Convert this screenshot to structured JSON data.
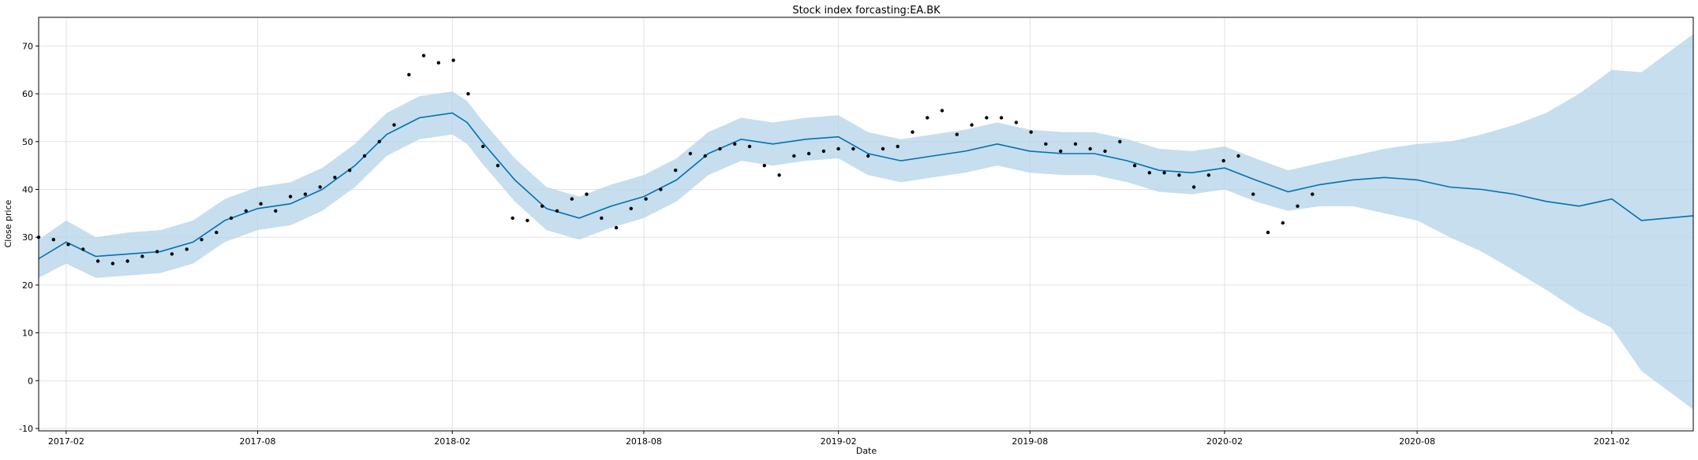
{
  "chart_data": {
    "type": "line",
    "title": "Stock index forcasting:EA.BK",
    "xlabel": "Date",
    "ylabel": "Close price",
    "x_ticks": [
      "2017-02",
      "2017-08",
      "2018-02",
      "2018-08",
      "2019-02",
      "2019-08",
      "2020-02",
      "2020-08",
      "2021-02"
    ],
    "y_ticks": [
      -10,
      0,
      10,
      20,
      30,
      40,
      50,
      60,
      70
    ],
    "xlim": [
      "2017-01-06",
      "2021-04-19"
    ],
    "ylim": [
      -10.5,
      76
    ],
    "grid": true,
    "colors": {
      "forecast_line": "#0072B2",
      "uncertainty_band": "#B3D3E8",
      "observed_points": "#000000",
      "grid": "#e2e2e2"
    },
    "series": [
      {
        "kind": "forecast",
        "x": [
          "2017-01-06",
          "2017-02-01",
          "2017-03-01",
          "2017-04-01",
          "2017-05-01",
          "2017-06-01",
          "2017-07-01",
          "2017-08-01",
          "2017-09-01",
          "2017-10-01",
          "2017-11-01",
          "2017-12-01",
          "2018-01-01",
          "2018-02-01",
          "2018-02-15",
          "2018-03-01",
          "2018-04-01",
          "2018-05-01",
          "2018-06-01",
          "2018-07-01",
          "2018-08-01",
          "2018-09-01",
          "2018-10-01",
          "2018-11-01",
          "2018-12-01",
          "2019-01-01",
          "2019-02-01",
          "2019-03-01",
          "2019-04-01",
          "2019-05-01",
          "2019-06-01",
          "2019-07-01",
          "2019-08-01",
          "2019-09-01",
          "2019-10-01",
          "2019-11-01",
          "2019-12-01",
          "2020-01-01",
          "2020-02-01",
          "2020-03-01",
          "2020-04-01",
          "2020-05-01",
          "2020-06-01",
          "2020-07-01",
          "2020-08-01",
          "2020-09-01",
          "2020-10-01",
          "2020-11-01",
          "2020-12-01",
          "2021-01-01",
          "2021-02-01",
          "2021-03-01",
          "2021-04-19"
        ],
        "y": [
          25.5,
          29.0,
          26.0,
          26.5,
          27.0,
          29.0,
          33.5,
          36.0,
          37.0,
          40.0,
          45.0,
          51.5,
          55.0,
          56.0,
          54.0,
          50.0,
          42.0,
          36.0,
          34.0,
          36.5,
          38.5,
          42.0,
          47.5,
          50.5,
          49.5,
          50.5,
          51.0,
          47.5,
          46.0,
          47.0,
          48.0,
          49.5,
          48.0,
          47.5,
          47.5,
          46.0,
          44.0,
          43.5,
          44.5,
          42.0,
          39.5,
          41.0,
          42.0,
          42.5,
          42.0,
          40.5,
          40.0,
          39.0,
          37.5,
          36.5,
          38.0,
          33.5,
          34.5
        ]
      },
      {
        "kind": "uncertainty_band",
        "x": [
          "2017-01-06",
          "2017-02-01",
          "2017-03-01",
          "2017-04-01",
          "2017-05-01",
          "2017-06-01",
          "2017-07-01",
          "2017-08-01",
          "2017-09-01",
          "2017-10-01",
          "2017-11-01",
          "2017-12-01",
          "2018-01-01",
          "2018-02-01",
          "2018-02-15",
          "2018-03-01",
          "2018-04-01",
          "2018-05-01",
          "2018-06-01",
          "2018-07-01",
          "2018-08-01",
          "2018-09-01",
          "2018-10-01",
          "2018-11-01",
          "2018-12-01",
          "2019-01-01",
          "2019-02-01",
          "2019-03-01",
          "2019-04-01",
          "2019-05-01",
          "2019-06-01",
          "2019-07-01",
          "2019-08-01",
          "2019-09-01",
          "2019-10-01",
          "2019-11-01",
          "2019-12-01",
          "2020-01-01",
          "2020-02-01",
          "2020-03-01",
          "2020-04-01",
          "2020-05-01",
          "2020-06-01",
          "2020-07-01",
          "2020-08-01",
          "2020-09-01",
          "2020-10-01",
          "2020-11-01",
          "2020-12-01",
          "2021-01-01",
          "2021-02-01",
          "2021-03-01",
          "2021-04-19"
        ],
        "lower": [
          21.5,
          24.5,
          21.5,
          22.0,
          22.5,
          24.5,
          29.0,
          31.5,
          32.5,
          35.5,
          40.5,
          47.0,
          50.5,
          51.5,
          49.5,
          45.5,
          37.5,
          31.5,
          29.5,
          32.0,
          34.0,
          37.5,
          43.0,
          46.0,
          45.0,
          46.0,
          46.5,
          43.0,
          41.5,
          42.5,
          43.5,
          45.0,
          43.5,
          43.0,
          43.0,
          41.5,
          39.5,
          39.0,
          40.0,
          37.5,
          35.5,
          36.5,
          36.5,
          35.0,
          33.5,
          30.0,
          27.0,
          23.0,
          19.0,
          14.5,
          11.0,
          2.0,
          -6.0
        ],
        "upper": [
          29.5,
          33.5,
          30.0,
          31.0,
          31.5,
          33.5,
          38.0,
          40.5,
          41.5,
          44.5,
          49.5,
          56.0,
          59.5,
          60.5,
          58.5,
          54.5,
          46.5,
          40.5,
          38.5,
          41.0,
          43.0,
          46.5,
          52.0,
          55.0,
          54.0,
          55.0,
          55.5,
          52.0,
          50.5,
          51.5,
          52.5,
          54.0,
          52.5,
          52.0,
          52.0,
          50.5,
          48.5,
          48.0,
          49.0,
          46.5,
          44.0,
          45.5,
          47.0,
          48.5,
          49.5,
          50.0,
          51.5,
          53.5,
          56.0,
          60.0,
          65.0,
          64.5,
          72.5
        ]
      },
      {
        "kind": "observed",
        "x": [
          "2017-01-06",
          "2017-01-20",
          "2017-02-03",
          "2017-02-17",
          "2017-03-03",
          "2017-03-17",
          "2017-03-31",
          "2017-04-14",
          "2017-04-28",
          "2017-05-12",
          "2017-05-26",
          "2017-06-09",
          "2017-06-23",
          "2017-07-07",
          "2017-07-21",
          "2017-08-04",
          "2017-08-18",
          "2017-09-01",
          "2017-09-15",
          "2017-09-29",
          "2017-10-13",
          "2017-10-27",
          "2017-11-10",
          "2017-11-24",
          "2017-12-08",
          "2017-12-22",
          "2018-01-05",
          "2018-01-19",
          "2018-02-02",
          "2018-02-16",
          "2018-03-02",
          "2018-03-16",
          "2018-03-30",
          "2018-04-13",
          "2018-04-27",
          "2018-05-11",
          "2018-05-25",
          "2018-06-08",
          "2018-06-22",
          "2018-07-06",
          "2018-07-20",
          "2018-08-03",
          "2018-08-17",
          "2018-08-31",
          "2018-09-14",
          "2018-09-28",
          "2018-10-12",
          "2018-10-26",
          "2018-11-09",
          "2018-11-23",
          "2018-12-07",
          "2018-12-21",
          "2019-01-04",
          "2019-01-18",
          "2019-02-01",
          "2019-02-15",
          "2019-03-01",
          "2019-03-15",
          "2019-03-29",
          "2019-04-12",
          "2019-04-26",
          "2019-05-10",
          "2019-05-24",
          "2019-06-07",
          "2019-06-21",
          "2019-07-05",
          "2019-07-19",
          "2019-08-02",
          "2019-08-16",
          "2019-08-30",
          "2019-09-13",
          "2019-09-27",
          "2019-10-11",
          "2019-10-25",
          "2019-11-08",
          "2019-11-22",
          "2019-12-06",
          "2019-12-20",
          "2020-01-03",
          "2020-01-17",
          "2020-01-31",
          "2020-02-14",
          "2020-02-28",
          "2020-03-13",
          "2020-03-27",
          "2020-04-10",
          "2020-04-24"
        ],
        "y": [
          30.0,
          29.5,
          28.5,
          27.5,
          25.0,
          24.5,
          25.0,
          26.0,
          27.0,
          26.5,
          27.5,
          29.5,
          31.0,
          34.0,
          35.5,
          37.0,
          35.5,
          38.5,
          39.0,
          40.5,
          42.5,
          44.0,
          47.0,
          50.0,
          53.5,
          64.0,
          68.0,
          66.5,
          67.0,
          60.0,
          49.0,
          45.0,
          34.0,
          33.5,
          36.5,
          35.5,
          38.0,
          39.0,
          34.0,
          32.0,
          36.0,
          38.0,
          40.0,
          44.0,
          47.5,
          47.0,
          48.5,
          49.5,
          49.0,
          45.0,
          43.0,
          47.0,
          47.5,
          48.0,
          48.5,
          48.5,
          47.0,
          48.5,
          49.0,
          52.0,
          55.0,
          56.5,
          51.5,
          53.5,
          55.0,
          55.0,
          54.0,
          52.0,
          49.5,
          48.0,
          49.5,
          48.5,
          48.0,
          50.0,
          45.0,
          43.5,
          43.5,
          43.0,
          40.5,
          43.0,
          46.0,
          47.0,
          39.0,
          31.0,
          33.0,
          36.5,
          39.0
        ]
      }
    ]
  }
}
